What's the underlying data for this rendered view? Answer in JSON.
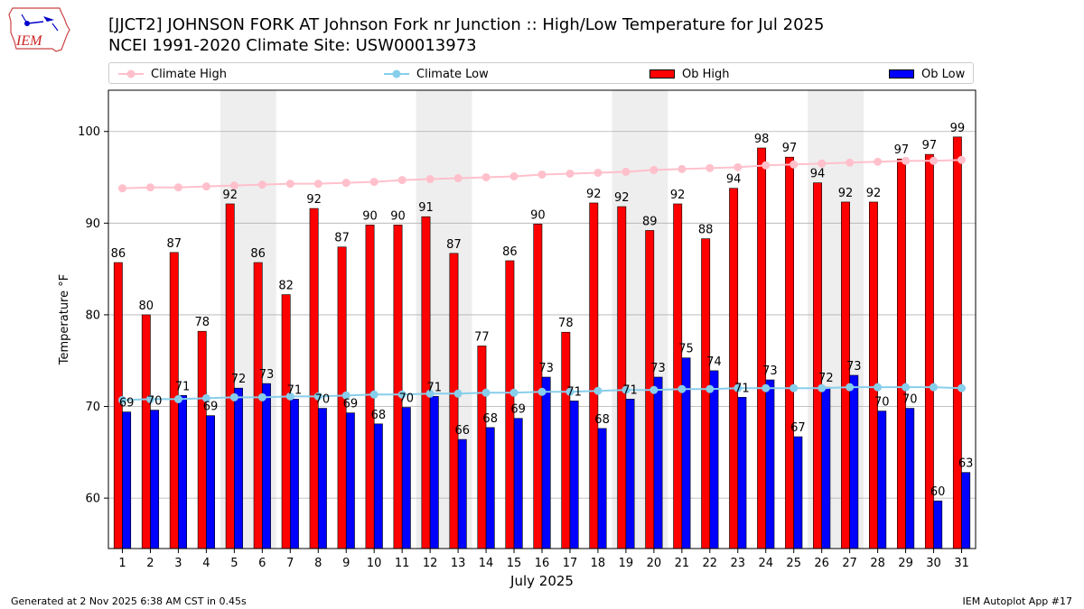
{
  "logo": {
    "text": "IEM"
  },
  "header": {
    "title_line1": "[JJCT2] JOHNSON FORK  AT Johnson Fork nr Junction :: High/Low Temperature for Jul 2025",
    "title_line2": "NCEI 1991-2020 Climate Site: USW00013973"
  },
  "legend": {
    "climate_high": "Climate High",
    "climate_low": "Climate Low",
    "ob_high": "Ob High",
    "ob_low": "Ob Low"
  },
  "colors": {
    "ob_high": "#ff0000",
    "ob_low": "#0000ff",
    "climate_high": "#ffc0cb",
    "climate_low": "#87ceeb",
    "weekend_shade": "#eeeeee",
    "grid": "#b0b0b0"
  },
  "chart_data": {
    "type": "bar",
    "xlabel": "July 2025",
    "ylabel": "Temperature °F",
    "ylim": [
      54.5,
      104.5
    ],
    "yticks": [
      60,
      70,
      80,
      90,
      100
    ],
    "grid": "horizontal",
    "categories": [
      "1",
      "2",
      "3",
      "4",
      "5",
      "6",
      "7",
      "8",
      "9",
      "10",
      "11",
      "12",
      "13",
      "14",
      "15",
      "16",
      "17",
      "18",
      "19",
      "20",
      "21",
      "22",
      "23",
      "24",
      "25",
      "26",
      "27",
      "28",
      "29",
      "30",
      "31"
    ],
    "weekend_bands": [
      [
        5,
        6
      ],
      [
        12,
        13
      ],
      [
        19,
        20
      ],
      [
        26,
        27
      ]
    ],
    "ob_high": {
      "values": [
        85.7,
        80.0,
        86.8,
        78.2,
        92.1,
        85.7,
        82.2,
        91.6,
        87.4,
        89.8,
        89.8,
        90.7,
        86.7,
        76.6,
        85.9,
        89.9,
        78.1,
        92.2,
        91.8,
        89.2,
        92.1,
        88.3,
        93.8,
        98.2,
        97.2,
        94.4,
        92.3,
        92.3,
        97.0,
        97.5,
        99.4
      ],
      "labels": [
        "86",
        "80",
        "87",
        "78",
        "92",
        "86",
        "82",
        "92",
        "87",
        "90",
        "90",
        "91",
        "87",
        "77",
        "86",
        "90",
        "78",
        "92",
        "92",
        "89",
        "92",
        "88",
        "94",
        "98",
        "97",
        "94",
        "92",
        "92",
        "97",
        "97",
        "99"
      ]
    },
    "ob_low": {
      "values": [
        69.4,
        69.6,
        71.2,
        69.0,
        72.0,
        72.5,
        70.8,
        69.8,
        69.3,
        68.1,
        69.9,
        71.1,
        66.4,
        67.7,
        68.7,
        73.2,
        70.6,
        67.6,
        70.8,
        73.2,
        75.3,
        73.9,
        71.0,
        72.9,
        66.7,
        72.1,
        73.4,
        69.5,
        69.8,
        59.7,
        62.8
      ],
      "labels": [
        "69",
        "70",
        "71",
        "69",
        "72",
        "73",
        "71",
        "70",
        "69",
        "68",
        "70",
        "71",
        "66",
        "68",
        "69",
        "73",
        "71",
        "68",
        "71",
        "73",
        "75",
        "74",
        "71",
        "73",
        "67",
        "72",
        "73",
        "70",
        "70",
        "60",
        "63"
      ]
    },
    "climate_high": [
      93.8,
      93.9,
      93.9,
      94.0,
      94.1,
      94.2,
      94.3,
      94.3,
      94.4,
      94.5,
      94.7,
      94.8,
      94.9,
      95.0,
      95.1,
      95.3,
      95.4,
      95.5,
      95.6,
      95.8,
      95.9,
      96.0,
      96.1,
      96.3,
      96.4,
      96.5,
      96.6,
      96.7,
      96.8,
      96.8,
      96.9
    ],
    "climate_low": [
      70.7,
      70.8,
      70.8,
      70.9,
      71.0,
      71.0,
      71.1,
      71.1,
      71.2,
      71.3,
      71.3,
      71.4,
      71.4,
      71.5,
      71.5,
      71.6,
      71.6,
      71.7,
      71.8,
      71.8,
      71.9,
      71.9,
      72.0,
      72.0,
      72.0,
      72.0,
      72.1,
      72.1,
      72.1,
      72.1,
      72.0
    ]
  },
  "footer": {
    "left": "Generated at 2 Nov 2025 6:38 AM CST in 0.45s",
    "right": "IEM Autoplot App #17"
  }
}
